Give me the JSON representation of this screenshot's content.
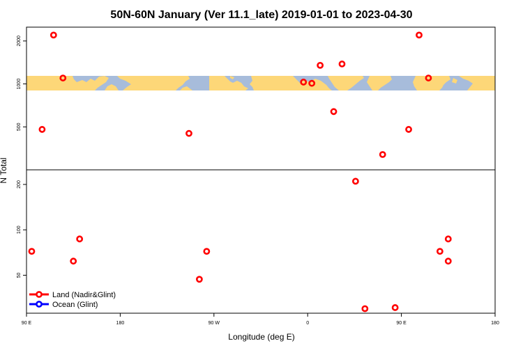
{
  "chart_data": {
    "type": "scatter",
    "title": "50N-60N January (Ver 11.1_late)   2019-01-01 to 2023-04-30",
    "xlabel": "Longitude (deg E)",
    "ylabel": "N Total",
    "x_ticks": [
      {
        "value": 90,
        "label": "90 E"
      },
      {
        "value": 180,
        "label": "180"
      },
      {
        "value": 270,
        "label": "90 W"
      },
      {
        "value": 360,
        "label": "0"
      },
      {
        "value": 450,
        "label": "90 E"
      },
      {
        "value": 540,
        "label": "180"
      }
    ],
    "xlim": [
      90,
      540
    ],
    "y_upper_ticks": [
      500,
      1000,
      2000
    ],
    "y_upper_lim": [
      250,
      2500
    ],
    "y_lower_ticks": [
      50,
      100,
      200
    ],
    "y_lower_lim": [
      28,
      250
    ],
    "legend": [
      {
        "label": "Land (Nadir&Glint)",
        "color": "#ff0000"
      },
      {
        "label": "Ocean (Glint)",
        "color": "#0000ff"
      }
    ],
    "series": [
      {
        "name": "Land (Nadir&Glint)",
        "color": "#ff0000",
        "points": [
          {
            "x": 116,
            "y": 2200
          },
          {
            "x": 125,
            "y": 1100
          },
          {
            "x": 105,
            "y": 480
          },
          {
            "x": 246,
            "y": 450
          },
          {
            "x": 356,
            "y": 1030
          },
          {
            "x": 364,
            "y": 1010
          },
          {
            "x": 372,
            "y": 1350
          },
          {
            "x": 393,
            "y": 1380
          },
          {
            "x": 385,
            "y": 640
          },
          {
            "x": 467,
            "y": 2200
          },
          {
            "x": 476,
            "y": 1100
          },
          {
            "x": 457,
            "y": 480
          },
          {
            "x": 432,
            "y": 320
          },
          {
            "x": 95,
            "y": 72
          },
          {
            "x": 135,
            "y": 62
          },
          {
            "x": 141,
            "y": 87
          },
          {
            "x": 256,
            "y": 47
          },
          {
            "x": 263,
            "y": 72
          },
          {
            "x": 406,
            "y": 210
          },
          {
            "x": 415,
            "y": 30
          },
          {
            "x": 444,
            "y": 30.5
          },
          {
            "x": 487,
            "y": 72
          },
          {
            "x": 495,
            "y": 87
          },
          {
            "x": 495,
            "y": 62
          }
        ]
      },
      {
        "name": "Ocean (Glint)",
        "color": "#0000ff",
        "points": []
      }
    ]
  },
  "map_colors": {
    "ocean": "#a7bcdb",
    "land": "#fdd778"
  }
}
